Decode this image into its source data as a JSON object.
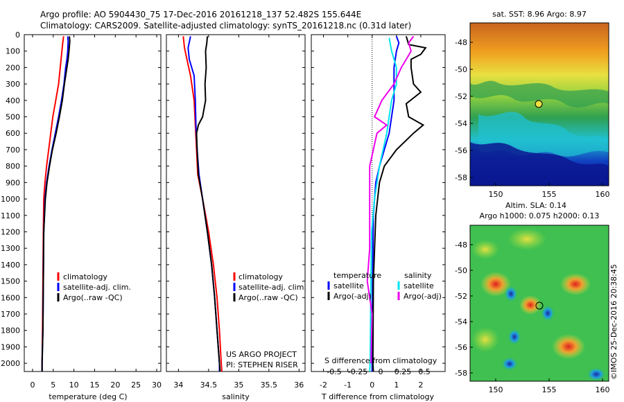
{
  "header": {
    "line1": "Argo profile: AO 5904430_75 17-Dec-2016 20161218_137 52.482S 155.644E",
    "line2": "Climatology: CARS2009. Satellite-adjusted climatology: synTS_20161218.nc (0.31d later)"
  },
  "colors": {
    "climatology": "#ff0000",
    "satellite": "#0000ff",
    "argo": "#000000",
    "sat_salinity": "#00e5ee",
    "argo_salinity": "#ee00ee"
  },
  "chart_data": [
    {
      "type": "line",
      "xlabel": "temperature (deg C)",
      "ylabel": "",
      "xlim": [
        -2,
        31
      ],
      "ylim": [
        2050,
        0
      ],
      "xticks": [
        0,
        5,
        10,
        15,
        20,
        25,
        30
      ],
      "yticks": [
        0,
        100,
        200,
        300,
        400,
        500,
        600,
        700,
        800,
        900,
        1000,
        1100,
        1200,
        1300,
        1400,
        1500,
        1600,
        1700,
        1800,
        1900,
        2000
      ],
      "legend": [
        "climatology",
        "satellite-adj. clim.",
        "Argo(..raw -QC)"
      ],
      "series": [
        {
          "color": "red",
          "points": [
            [
              7.5,
              10
            ],
            [
              7.3,
              50
            ],
            [
              7.1,
              100
            ],
            [
              6.9,
              150
            ],
            [
              6.7,
              200
            ],
            [
              6.3,
              300
            ],
            [
              5.6,
              400
            ],
            [
              4.9,
              500
            ],
            [
              4.4,
              600
            ],
            [
              3.9,
              700
            ],
            [
              3.4,
              800
            ],
            [
              3.0,
              900
            ],
            [
              2.7,
              1000
            ],
            [
              2.6,
              1200
            ],
            [
              2.5,
              1500
            ],
            [
              2.4,
              1800
            ],
            [
              2.3,
              2000
            ],
            [
              2.3,
              2050
            ]
          ]
        },
        {
          "color": "blue",
          "points": [
            [
              8.5,
              10
            ],
            [
              8.6,
              40
            ],
            [
              8.5,
              100
            ],
            [
              8.3,
              150
            ],
            [
              8.0,
              200
            ],
            [
              7.6,
              300
            ],
            [
              7.0,
              400
            ],
            [
              6.3,
              500
            ],
            [
              5.5,
              600
            ],
            [
              4.7,
              700
            ],
            [
              4.0,
              800
            ],
            [
              3.4,
              900
            ],
            [
              3.0,
              1000
            ],
            [
              2.7,
              1200
            ],
            [
              2.6,
              1500
            ],
            [
              2.5,
              1800
            ],
            [
              2.3,
              2000
            ],
            [
              2.3,
              2050
            ]
          ]
        },
        {
          "color": "black",
          "points": [
            [
              8.9,
              10
            ],
            [
              9.0,
              40
            ],
            [
              8.8,
              100
            ],
            [
              8.6,
              150
            ],
            [
              8.3,
              200
            ],
            [
              7.7,
              300
            ],
            [
              7.2,
              400
            ],
            [
              6.5,
              500
            ],
            [
              5.7,
              600
            ],
            [
              4.8,
              700
            ],
            [
              4.1,
              800
            ],
            [
              3.5,
              900
            ],
            [
              3.1,
              1000
            ],
            [
              2.7,
              1200
            ],
            [
              2.6,
              1500
            ],
            [
              2.5,
              1800
            ],
            [
              2.3,
              2000
            ],
            [
              2.3,
              2050
            ]
          ]
        }
      ]
    },
    {
      "type": "line",
      "xlabel": "salinity",
      "xlim": [
        33.8,
        36.1
      ],
      "ylim": [
        2050,
        0
      ],
      "xticks": [
        34,
        34.5,
        35,
        35.5,
        36
      ],
      "legend": [
        "climatology",
        "satellite-adj. clim.",
        "Argo(..raw -QC)"
      ],
      "annotation": [
        "US ARGO PROJECT",
        "PI: STEPHEN RISER"
      ],
      "series": [
        {
          "color": "red",
          "points": [
            [
              34.08,
              10
            ],
            [
              34.1,
              80
            ],
            [
              34.14,
              150
            ],
            [
              34.2,
              250
            ],
            [
              34.26,
              400
            ],
            [
              34.28,
              550
            ],
            [
              34.3,
              700
            ],
            [
              34.32,
              850
            ],
            [
              34.4,
              1000
            ],
            [
              34.5,
              1200
            ],
            [
              34.58,
              1400
            ],
            [
              34.64,
              1600
            ],
            [
              34.68,
              1800
            ],
            [
              34.71,
              2000
            ],
            [
              34.72,
              2050
            ]
          ]
        },
        {
          "color": "blue",
          "points": [
            [
              34.2,
              10
            ],
            [
              34.16,
              80
            ],
            [
              34.18,
              150
            ],
            [
              34.26,
              250
            ],
            [
              34.28,
              400
            ],
            [
              34.29,
              550
            ],
            [
              34.31,
              700
            ],
            [
              34.34,
              850
            ],
            [
              34.4,
              1000
            ],
            [
              34.48,
              1200
            ],
            [
              34.55,
              1400
            ],
            [
              34.6,
              1600
            ],
            [
              34.64,
              1800
            ],
            [
              34.68,
              2000
            ],
            [
              34.68,
              2050
            ]
          ]
        },
        {
          "color": "black",
          "points": [
            [
              34.48,
              10
            ],
            [
              34.47,
              50
            ],
            [
              34.45,
              100
            ],
            [
              34.46,
              200
            ],
            [
              34.44,
              300
            ],
            [
              34.45,
              400
            ],
            [
              34.4,
              500
            ],
            [
              34.33,
              550
            ],
            [
              34.3,
              600
            ],
            [
              34.31,
              700
            ],
            [
              34.33,
              850
            ],
            [
              34.4,
              1000
            ],
            [
              34.48,
              1200
            ],
            [
              34.55,
              1400
            ],
            [
              34.6,
              1600
            ],
            [
              34.64,
              1800
            ],
            [
              34.68,
              2000
            ],
            [
              34.69,
              2050
            ]
          ]
        }
      ]
    },
    {
      "type": "line",
      "xlabel": "T difference from climatology",
      "xlabel_top": "S difference from climatology",
      "xlim": [
        -2.5,
        3.0
      ],
      "ylim": [
        2050,
        0
      ],
      "xticks": [
        -2,
        -1,
        0,
        1,
        2
      ],
      "top_ticks": [
        "-0.5",
        "-0.25",
        "0",
        "0.25",
        "0.5"
      ],
      "legend_temperature": {
        "title": "temperature",
        "items": [
          "satellite",
          "Argo(-adj)"
        ]
      },
      "legend_salinity": {
        "title": "salinity",
        "items": [
          "satellite",
          "Argo(-adj)"
        ]
      },
      "series": [
        {
          "color": "blue",
          "points": [
            [
              1.0,
              10
            ],
            [
              1.1,
              50
            ],
            [
              1.0,
              100
            ],
            [
              0.9,
              200
            ],
            [
              0.9,
              300
            ],
            [
              0.9,
              400
            ],
            [
              0.8,
              500
            ],
            [
              0.7,
              600
            ],
            [
              0.5,
              700
            ],
            [
              0.3,
              800
            ],
            [
              0.15,
              900
            ],
            [
              0.05,
              1100
            ],
            [
              0.02,
              1500
            ],
            [
              0.0,
              2000
            ],
            [
              0.0,
              2050
            ]
          ]
        },
        {
          "color": "black",
          "points": [
            [
              1.4,
              10
            ],
            [
              1.5,
              60
            ],
            [
              2.2,
              80
            ],
            [
              2.0,
              120
            ],
            [
              1.6,
              150
            ],
            [
              1.6,
              200
            ],
            [
              1.7,
              300
            ],
            [
              2.0,
              350
            ],
            [
              1.4,
              420
            ],
            [
              1.5,
              500
            ],
            [
              2.1,
              550
            ],
            [
              1.7,
              600
            ],
            [
              1.0,
              700
            ],
            [
              0.5,
              800
            ],
            [
              0.3,
              900
            ],
            [
              0.15,
              1100
            ],
            [
              0.05,
              1500
            ],
            [
              0.03,
              2000
            ],
            [
              0.05,
              2050
            ]
          ]
        },
        {
          "color": "cyan",
          "points": [
            [
              0.7,
              20
            ],
            [
              0.8,
              100
            ],
            [
              1.0,
              200
            ],
            [
              1.0,
              300
            ],
            [
              0.8,
              400
            ],
            [
              0.7,
              500
            ],
            [
              0.6,
              600
            ],
            [
              0.3,
              800
            ],
            [
              0.1,
              1000
            ],
            [
              -0.02,
              1200
            ],
            [
              -0.05,
              1500
            ],
            [
              -0.08,
              2000
            ],
            [
              -0.1,
              2050
            ]
          ]
        },
        {
          "color": "magenta",
          "points": [
            [
              1.7,
              10
            ],
            [
              1.5,
              50
            ],
            [
              1.6,
              100
            ],
            [
              1.4,
              150
            ],
            [
              1.2,
              200
            ],
            [
              0.9,
              300
            ],
            [
              0.4,
              400
            ],
            [
              0.1,
              500
            ],
            [
              0.6,
              550
            ],
            [
              0.2,
              600
            ],
            [
              0.05,
              700
            ],
            [
              -0.1,
              800
            ],
            [
              -0.1,
              1000
            ],
            [
              -0.1,
              1300
            ],
            [
              -0.2,
              1500
            ],
            [
              0.0,
              1700
            ],
            [
              -0.05,
              2000
            ]
          ]
        }
      ]
    }
  ],
  "maps": {
    "sst": {
      "title": "sat. SST: 8.96  Argo: 8.97",
      "yticks": [
        "-48",
        "-50",
        "-52",
        "-54",
        "-56",
        "-58"
      ],
      "xticks": [
        "150",
        "155",
        "160"
      ]
    },
    "sla": {
      "title_line1": "Altim. SLA: 0.14",
      "title_line2": "Argo h1000: 0.075  h2000: 0.13",
      "yticks": [
        "-48",
        "-50",
        "-52",
        "-54",
        "-56",
        "-58"
      ],
      "xticks": [
        "150",
        "155",
        "160"
      ],
      "credit": "©IMOS 25-Dec-2016 20:38:45"
    }
  }
}
